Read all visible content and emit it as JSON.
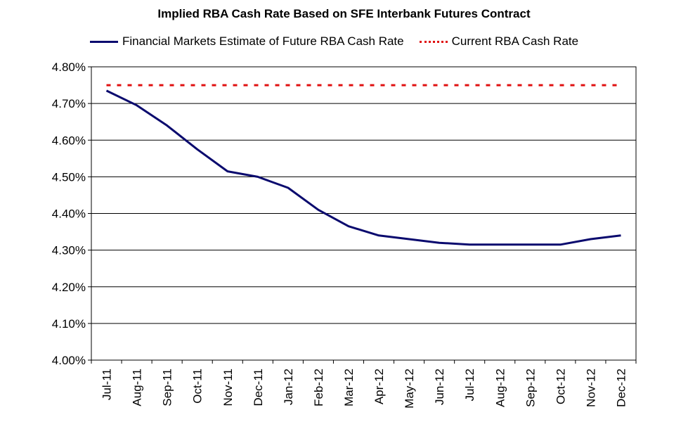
{
  "colors": {
    "estimate": "#0a0a6e",
    "current": "#e01010",
    "grid": "#000000"
  },
  "chart_data": {
    "type": "line",
    "title": "Implied RBA Cash Rate Based on SFE Interbank Futures Contract",
    "xlabel": "",
    "ylabel": "",
    "ylim": [
      4.0,
      4.8
    ],
    "yticks": [
      "4.00%",
      "4.10%",
      "4.20%",
      "4.30%",
      "4.40%",
      "4.50%",
      "4.60%",
      "4.70%",
      "4.80%"
    ],
    "grid": true,
    "legend_position": "top",
    "categories": [
      "Jul-11",
      "Aug-11",
      "Sep-11",
      "Oct-11",
      "Nov-11",
      "Dec-11",
      "Jan-12",
      "Feb-12",
      "Mar-12",
      "Apr-12",
      "May-12",
      "Jun-12",
      "Jul-12",
      "Aug-12",
      "Sep-12",
      "Oct-12",
      "Nov-12",
      "Dec-12"
    ],
    "series": [
      {
        "name": "Financial Markets Estimate of Future RBA Cash Rate",
        "style": "solid",
        "values": [
          4.735,
          4.695,
          4.64,
          4.575,
          4.515,
          4.5,
          4.47,
          4.41,
          4.365,
          4.34,
          4.33,
          4.32,
          4.315,
          4.315,
          4.315,
          4.315,
          4.33,
          4.34
        ]
      },
      {
        "name": "Current RBA Cash Rate",
        "style": "dotted",
        "values": [
          4.75,
          4.75,
          4.75,
          4.75,
          4.75,
          4.75,
          4.75,
          4.75,
          4.75,
          4.75,
          4.75,
          4.75,
          4.75,
          4.75,
          4.75,
          4.75,
          4.75,
          4.75
        ]
      }
    ]
  }
}
